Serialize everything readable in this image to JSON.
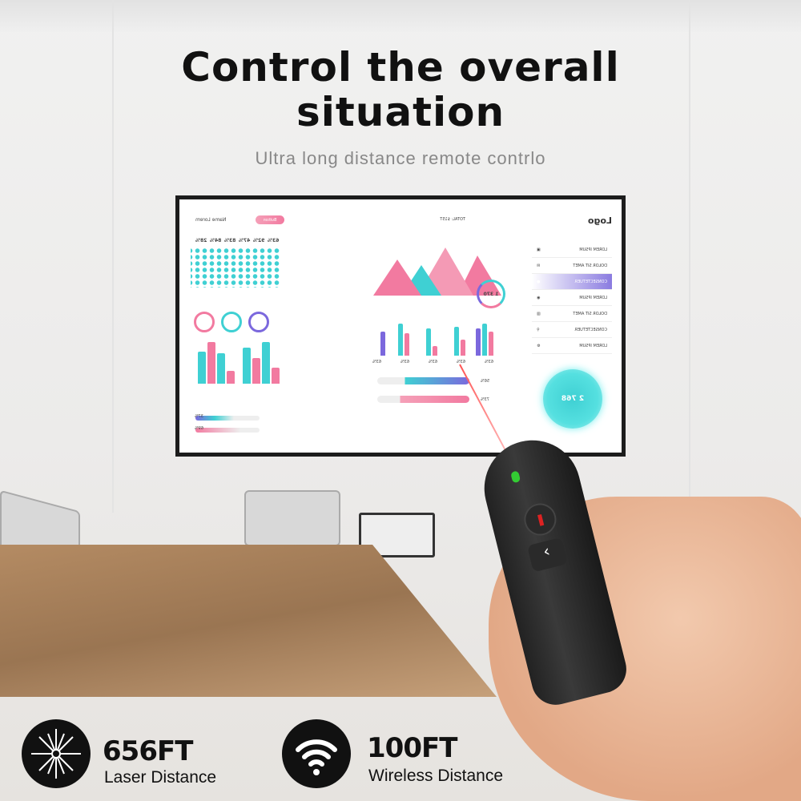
{
  "headline": {
    "line1": "Control the overall",
    "line2": "situation"
  },
  "subtitle": "Ultra long distance remote contrlo",
  "screen": {
    "logo": "Logo",
    "sidebar_items": [
      "LOREM IPSUM",
      "DOLOR SIT AMET",
      "CONSECTETUER",
      "LOREM IPSUM",
      "DOLOR SIT AMET",
      "CONSECTETUER",
      "LOREM IPSUM"
    ],
    "gear_value": "2 768",
    "ring_value": "1 370",
    "user_name": "Name Lorem",
    "button": "Button",
    "total_label": "TOTAL: $15T",
    "percentages": [
      "63%",
      "92%",
      "47%",
      "83%",
      "84%",
      "28%"
    ],
    "bar_labels": [
      "63%",
      "63%",
      "63%",
      "63%",
      "63%"
    ],
    "slider_values": [
      "37%",
      "69%"
    ],
    "progress_values": [
      "56%",
      "73%"
    ],
    "accent_colors": [
      "#3fd0d3",
      "#f27aa0",
      "#7b68dd"
    ]
  },
  "features": [
    {
      "icon": "laser-icon",
      "value": "656FT",
      "label": "Laser Distance"
    },
    {
      "icon": "wifi-icon",
      "value": "100FT",
      "label": "Wireless Distance"
    }
  ]
}
